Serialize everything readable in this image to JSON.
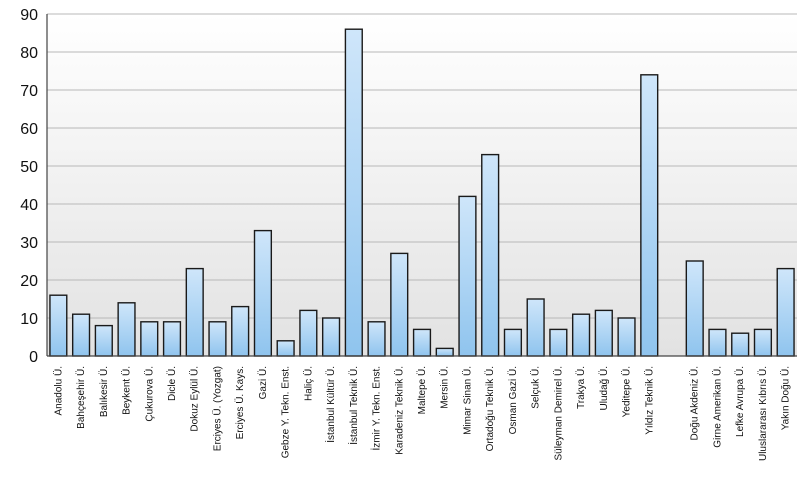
{
  "chart_data": {
    "type": "bar",
    "categories": [
      "Anadolu Ü.",
      "Bahçeşehir Ü.",
      "Balıkesir Ü.",
      "Beykent Ü.",
      "Çukurova Ü.",
      "Dicle Ü.",
      "Dokuz Eylül Ü.",
      "Erciyes Ü. (Yozgat)",
      "Erciyes Ü. Kays.",
      "Gazi Ü.",
      "Gebze Y. Tekn. Enst.",
      "Haliç Ü.",
      "İstanbul Kültür Ü.",
      "İstanbul Teknik Ü.",
      "İzmir Y. Tekn. Enst.",
      "Karadeniz Teknik Ü.",
      "Maltepe Ü.",
      "Mersin Ü.",
      "Mimar Sinan Ü.",
      "Ortadoğu Teknik Ü.",
      "Osman Gazi Ü.",
      "Selçuk Ü.",
      "Süleyman Demirel Ü.",
      "Trakya Ü.",
      "Uludağ Ü.",
      "Yeditepe Ü.",
      "Yıldız Teknik Ü.",
      "Doğu Akdeniz Ü.",
      "Girne Amerikan Ü.",
      "Lefke Avrupa Ü.",
      "Uluslararası Kıbrıs Ü.",
      "Yakın Doğu Ü."
    ],
    "values": [
      16,
      11,
      8,
      14,
      9,
      9,
      23,
      9,
      13,
      33,
      4,
      12,
      10,
      86,
      9,
      27,
      7,
      2,
      42,
      53,
      7,
      15,
      7,
      11,
      12,
      10,
      74,
      25,
      7,
      6,
      7,
      23
    ],
    "groups": [
      27,
      5
    ],
    "title": "",
    "xlabel": "",
    "ylabel": "",
    "ylim": [
      0,
      90
    ],
    "yticks": [
      0,
      10,
      20,
      30,
      40,
      50,
      60,
      70,
      80,
      90
    ],
    "grid": true,
    "legend": "none",
    "colors": {
      "bar_fill_top": "#cfe6fa",
      "bar_fill_bottom": "#8fc4ee",
      "bar_stroke": "#1a1a1a",
      "grid": "#b8b8b8",
      "plot_bg_top": "#ffffff",
      "plot_bg_bottom": "#e2e2e2"
    }
  }
}
